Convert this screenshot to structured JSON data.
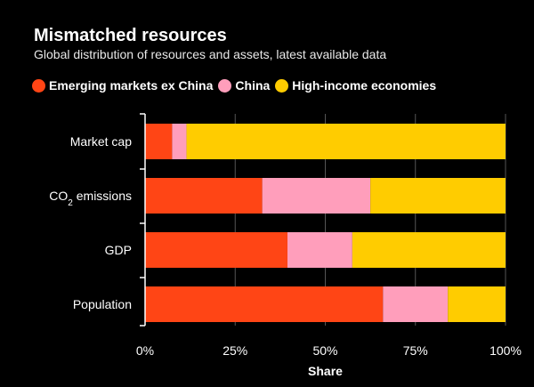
{
  "chart_data": {
    "type": "bar",
    "orientation": "horizontal",
    "stacked": true,
    "title": "Mismatched resources",
    "subtitle": "Global distribution of resources and assets, latest available data",
    "categories": [
      "Market cap",
      "CO2 emissions",
      "GDP",
      "Population"
    ],
    "series": [
      {
        "name": "Emerging markets ex China",
        "color": "#ff4515",
        "values": [
          7.5,
          32.5,
          39.5,
          66
        ]
      },
      {
        "name": "China",
        "color": "#ff9ebb",
        "values": [
          4,
          30,
          18,
          18
        ]
      },
      {
        "name": "High-income economies",
        "color": "#ffcc00",
        "values": [
          88.5,
          37.5,
          42.5,
          16
        ]
      }
    ],
    "xlabel": "Share",
    "xlim": [
      0,
      100
    ],
    "xticks": [
      "0%",
      "25%",
      "50%",
      "75%",
      "100%"
    ],
    "xtick_values": [
      0,
      25,
      50,
      75,
      100
    ]
  }
}
